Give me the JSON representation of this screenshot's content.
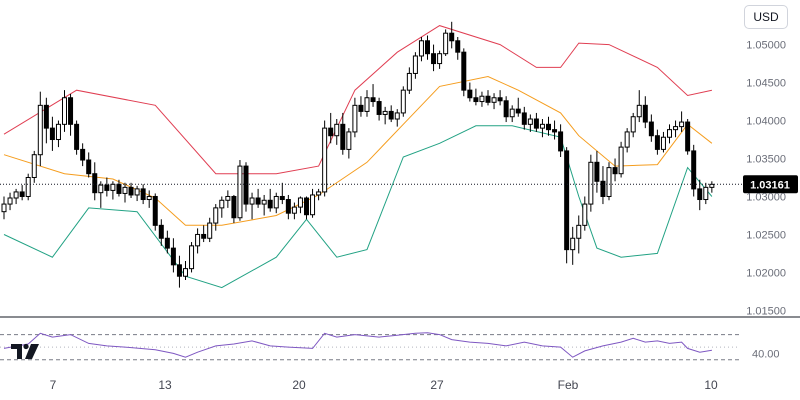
{
  "toolbar": {
    "currency": "USD"
  },
  "colors": {
    "candle": "#000000",
    "upper_band": "#e03e52",
    "basis": "#f59d1e",
    "lower_band": "#22a284",
    "oscillator": "#7e57c2",
    "last_price_bg": "#000000",
    "grid_dash": "#787b86"
  },
  "chart_data": {
    "type": "candlestick",
    "price_axis": {
      "ylim": [
        1.014,
        1.0535
      ],
      "ticks": [
        "1.05000",
        "1.04500",
        "1.04000",
        "1.03500",
        "1.03000",
        "1.02500",
        "1.02000",
        "1.01500"
      ]
    },
    "time_axis": {
      "ticks": [
        "7",
        "13",
        "20",
        "27",
        "Feb",
        "10"
      ]
    },
    "last_price": {
      "value": 1.03161,
      "label": "1.03161"
    },
    "candles": [
      [
        1.028,
        1.03,
        1.027,
        1.029
      ],
      [
        1.029,
        1.0305,
        1.0282,
        1.0298
      ],
      [
        1.0298,
        1.031,
        1.029,
        1.0306
      ],
      [
        1.0306,
        1.0315,
        1.0295,
        1.03
      ],
      [
        1.03,
        1.033,
        1.0295,
        1.0325
      ],
      [
        1.0325,
        1.036,
        1.0318,
        1.0355
      ],
      [
        1.0355,
        1.0438,
        1.034,
        1.042
      ],
      [
        1.042,
        1.043,
        1.037,
        1.039
      ],
      [
        1.039,
        1.0405,
        1.036,
        1.0375
      ],
      [
        1.0375,
        1.04,
        1.0365,
        1.0395
      ],
      [
        1.0395,
        1.044,
        1.0385,
        1.043
      ],
      [
        1.043,
        1.0435,
        1.038,
        1.0395
      ],
      [
        1.0395,
        1.04,
        1.0355,
        1.0362
      ],
      [
        1.0362,
        1.037,
        1.034,
        1.0348
      ],
      [
        1.0348,
        1.0358,
        1.0325,
        1.033
      ],
      [
        1.033,
        1.0345,
        1.0295,
        1.0305
      ],
      [
        1.0305,
        1.032,
        1.0285,
        1.0315
      ],
      [
        1.0315,
        1.0325,
        1.03,
        1.0308
      ],
      [
        1.0308,
        1.032,
        1.0296,
        1.0316
      ],
      [
        1.0316,
        1.0322,
        1.03,
        1.0304
      ],
      [
        1.0304,
        1.0318,
        1.0292,
        1.0312
      ],
      [
        1.0312,
        1.0318,
        1.0298,
        1.0302
      ],
      [
        1.0302,
        1.0314,
        1.0294,
        1.031
      ],
      [
        1.031,
        1.0316,
        1.029,
        1.0296
      ],
      [
        1.0296,
        1.0308,
        1.0285,
        1.03
      ],
      [
        1.03,
        1.0304,
        1.0255,
        1.0262
      ],
      [
        1.0262,
        1.027,
        1.0235,
        1.0245
      ],
      [
        1.0245,
        1.0255,
        1.0225,
        1.0232
      ],
      [
        1.0232,
        1.0245,
        1.02,
        1.021
      ],
      [
        1.021,
        1.0222,
        1.018,
        1.0195
      ],
      [
        1.0195,
        1.0215,
        1.019,
        1.0205
      ],
      [
        1.0205,
        1.024,
        1.02,
        1.0235
      ],
      [
        1.0235,
        1.0258,
        1.0225,
        1.025
      ],
      [
        1.025,
        1.0262,
        1.024,
        1.0245
      ],
      [
        1.0245,
        1.0272,
        1.024,
        1.0265
      ],
      [
        1.0265,
        1.029,
        1.0255,
        1.0285
      ],
      [
        1.0285,
        1.03,
        1.0272,
        1.0295
      ],
      [
        1.0295,
        1.0308,
        1.0285,
        1.03
      ],
      [
        1.03,
        1.0302,
        1.0265,
        1.0272
      ],
      [
        1.0272,
        1.0348,
        1.0268,
        1.034
      ],
      [
        1.034,
        1.0345,
        1.028,
        1.029
      ],
      [
        1.029,
        1.0305,
        1.027,
        1.0298
      ],
      [
        1.0298,
        1.031,
        1.0285,
        1.029
      ],
      [
        1.029,
        1.0302,
        1.0275,
        1.0295
      ],
      [
        1.0295,
        1.031,
        1.028,
        1.0285
      ],
      [
        1.0285,
        1.0305,
        1.0278,
        1.03
      ],
      [
        1.03,
        1.0318,
        1.029,
        1.0296
      ],
      [
        1.0296,
        1.0302,
        1.027,
        1.0278
      ],
      [
        1.0278,
        1.0292,
        1.027,
        1.0286
      ],
      [
        1.0286,
        1.03,
        1.0278,
        1.0298
      ],
      [
        1.0298,
        1.03,
        1.027,
        1.0276
      ],
      [
        1.0276,
        1.031,
        1.0272,
        1.0302
      ],
      [
        1.0302,
        1.031,
        1.0295,
        1.0306
      ],
      [
        1.0306,
        1.04,
        1.03,
        1.039
      ],
      [
        1.039,
        1.041,
        1.037,
        1.038
      ],
      [
        1.038,
        1.0402,
        1.0368,
        1.0395
      ],
      [
        1.0395,
        1.041,
        1.0355,
        1.0362
      ],
      [
        1.0362,
        1.039,
        1.035,
        1.0385
      ],
      [
        1.0385,
        1.043,
        1.0378,
        1.042
      ],
      [
        1.042,
        1.0432,
        1.0405,
        1.0412
      ],
      [
        1.0412,
        1.044,
        1.0405,
        1.043
      ],
      [
        1.043,
        1.0448,
        1.0418,
        1.0425
      ],
      [
        1.0425,
        1.043,
        1.04,
        1.0408
      ],
      [
        1.0408,
        1.0418,
        1.0395,
        1.0412
      ],
      [
        1.0412,
        1.042,
        1.0398,
        1.0402
      ],
      [
        1.0402,
        1.0415,
        1.0392,
        1.041
      ],
      [
        1.041,
        1.0445,
        1.0405,
        1.044
      ],
      [
        1.044,
        1.047,
        1.0435,
        1.0462
      ],
      [
        1.0462,
        1.049,
        1.0455,
        1.0485
      ],
      [
        1.0485,
        1.051,
        1.0478,
        1.0505
      ],
      [
        1.0505,
        1.0512,
        1.048,
        1.0488
      ],
      [
        1.0488,
        1.05,
        1.0465,
        1.0475
      ],
      [
        1.0475,
        1.0492,
        1.0468,
        1.0488
      ],
      [
        1.0488,
        1.052,
        1.0485,
        1.0515
      ],
      [
        1.0515,
        1.053,
        1.0495,
        1.0505
      ],
      [
        1.0505,
        1.051,
        1.048,
        1.049
      ],
      [
        1.049,
        1.0495,
        1.0432,
        1.044
      ],
      [
        1.044,
        1.045,
        1.0425,
        1.043
      ],
      [
        1.043,
        1.0442,
        1.042,
        1.0425
      ],
      [
        1.0425,
        1.0438,
        1.0418,
        1.0432
      ],
      [
        1.0432,
        1.044,
        1.042,
        1.0424
      ],
      [
        1.0424,
        1.0436,
        1.0415,
        1.043
      ],
      [
        1.043,
        1.044,
        1.042,
        1.0426
      ],
      [
        1.0426,
        1.0432,
        1.0398,
        1.0405
      ],
      [
        1.0405,
        1.042,
        1.0398,
        1.0415
      ],
      [
        1.0415,
        1.043,
        1.0405,
        1.041
      ],
      [
        1.041,
        1.0418,
        1.0388,
        1.0395
      ],
      [
        1.0395,
        1.0408,
        1.0385,
        1.0402
      ],
      [
        1.0402,
        1.041,
        1.0385,
        1.039
      ],
      [
        1.039,
        1.0402,
        1.0378,
        1.0395
      ],
      [
        1.0395,
        1.0405,
        1.038,
        1.0388
      ],
      [
        1.0388,
        1.04,
        1.0375,
        1.0385
      ],
      [
        1.0385,
        1.0395,
        1.0352,
        1.036
      ],
      [
        1.036,
        1.0365,
        1.0212,
        1.023
      ],
      [
        1.023,
        1.026,
        1.021,
        1.0245
      ],
      [
        1.0245,
        1.0275,
        1.0225,
        1.0262
      ],
      [
        1.0262,
        1.03,
        1.0255,
        1.029
      ],
      [
        1.029,
        1.0355,
        1.028,
        1.0345
      ],
      [
        1.0345,
        1.036,
        1.0305,
        1.032
      ],
      [
        1.032,
        1.034,
        1.029,
        1.03
      ],
      [
        1.03,
        1.0345,
        1.0295,
        1.0338
      ],
      [
        1.0338,
        1.035,
        1.032,
        1.033
      ],
      [
        1.033,
        1.0372,
        1.0325,
        1.0365
      ],
      [
        1.0365,
        1.039,
        1.0358,
        1.0385
      ],
      [
        1.0385,
        1.041,
        1.0378,
        1.0405
      ],
      [
        1.0405,
        1.044,
        1.0398,
        1.042
      ],
      [
        1.042,
        1.0432,
        1.039,
        1.0398
      ],
      [
        1.0398,
        1.0408,
        1.0372,
        1.038
      ],
      [
        1.038,
        1.0388,
        1.0355,
        1.0362
      ],
      [
        1.0362,
        1.0385,
        1.0358,
        1.0378
      ],
      [
        1.0378,
        1.0395,
        1.037,
        1.0388
      ],
      [
        1.0388,
        1.04,
        1.0378,
        1.0392
      ],
      [
        1.0392,
        1.0412,
        1.0385,
        1.0398
      ],
      [
        1.0398,
        1.0402,
        1.0355,
        1.036
      ],
      [
        1.036,
        1.0368,
        1.03,
        1.031
      ],
      [
        1.031,
        1.0322,
        1.0282,
        1.0296
      ],
      [
        1.0296,
        1.0318,
        1.029,
        1.0312
      ],
      [
        1.0312,
        1.032,
        1.0305,
        1.0316
      ]
    ],
    "bollinger": {
      "upper": [
        [
          0,
          1.0382
        ],
        [
          12,
          1.044
        ],
        [
          25,
          1.042
        ],
        [
          35,
          1.033
        ],
        [
          45,
          1.033
        ],
        [
          52,
          1.034
        ],
        [
          58,
          1.044
        ],
        [
          65,
          1.049
        ],
        [
          72,
          1.0525
        ],
        [
          82,
          1.05
        ],
        [
          88,
          1.047
        ],
        [
          92,
          1.047
        ],
        [
          95,
          1.0502
        ],
        [
          100,
          1.05
        ],
        [
          108,
          1.047
        ],
        [
          113,
          1.0433
        ],
        [
          117,
          1.044
        ]
      ],
      "basis": [
        [
          0,
          1.0355
        ],
        [
          10,
          1.033
        ],
        [
          18,
          1.0323
        ],
        [
          25,
          1.0298
        ],
        [
          30,
          1.0262
        ],
        [
          36,
          1.0262
        ],
        [
          45,
          1.0275
        ],
        [
          52,
          1.0302
        ],
        [
          60,
          1.0345
        ],
        [
          66,
          1.0395
        ],
        [
          72,
          1.0445
        ],
        [
          80,
          1.0458
        ],
        [
          85,
          1.044
        ],
        [
          92,
          1.041
        ],
        [
          95,
          1.038
        ],
        [
          101,
          1.034
        ],
        [
          108,
          1.0342
        ],
        [
          113,
          1.0395
        ],
        [
          117,
          1.037
        ]
      ],
      "lower": [
        [
          0,
          1.025
        ],
        [
          8,
          1.022
        ],
        [
          14,
          1.0285
        ],
        [
          22,
          1.028
        ],
        [
          30,
          1.0195
        ],
        [
          36,
          1.018
        ],
        [
          45,
          1.022
        ],
        [
          50,
          1.027
        ],
        [
          55,
          1.022
        ],
        [
          60,
          1.023
        ],
        [
          66,
          1.0352
        ],
        [
          72,
          1.037
        ],
        [
          78,
          1.0393
        ],
        [
          84,
          1.0393
        ],
        [
          92,
          1.0378
        ],
        [
          95,
          1.03
        ],
        [
          98,
          1.0232
        ],
        [
          102,
          1.022
        ],
        [
          108,
          1.0225
        ],
        [
          113,
          1.0338
        ],
        [
          117,
          1.03
        ]
      ]
    },
    "oscillator": {
      "ticks": [
        "40.00"
      ],
      "ylim": [
        20,
        90
      ],
      "upper_level": 70,
      "mid_level": 50,
      "lower_level": 30,
      "values": [
        [
          0,
          48
        ],
        [
          4,
          55
        ],
        [
          6,
          72
        ],
        [
          8,
          66
        ],
        [
          11,
          70
        ],
        [
          14,
          56
        ],
        [
          17,
          52
        ],
        [
          20,
          50
        ],
        [
          25,
          46
        ],
        [
          28,
          40
        ],
        [
          30,
          34
        ],
        [
          32,
          42
        ],
        [
          35,
          52
        ],
        [
          38,
          55
        ],
        [
          41,
          60
        ],
        [
          44,
          52
        ],
        [
          47,
          50
        ],
        [
          51,
          48
        ],
        [
          53,
          72
        ],
        [
          55,
          66
        ],
        [
          58,
          70
        ],
        [
          62,
          66
        ],
        [
          65,
          69
        ],
        [
          68,
          72
        ],
        [
          70,
          73
        ],
        [
          72,
          70
        ],
        [
          74,
          62
        ],
        [
          77,
          58
        ],
        [
          80,
          56
        ],
        [
          83,
          52
        ],
        [
          86,
          58
        ],
        [
          89,
          52
        ],
        [
          92,
          50
        ],
        [
          94,
          34
        ],
        [
          96,
          44
        ],
        [
          99,
          52
        ],
        [
          102,
          58
        ],
        [
          104,
          64
        ],
        [
          106,
          58
        ],
        [
          108,
          60
        ],
        [
          110,
          56
        ],
        [
          112,
          58
        ],
        [
          113,
          48
        ],
        [
          115,
          42
        ],
        [
          117,
          45
        ]
      ]
    }
  }
}
